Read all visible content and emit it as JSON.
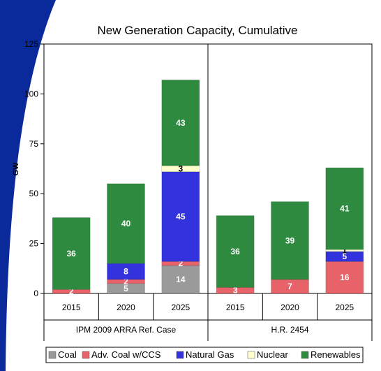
{
  "chart_data": {
    "type": "bar",
    "title": "New Generation Capacity, Cumulative",
    "ylabel": "GW",
    "xlabel": "",
    "ylim": [
      0,
      125
    ],
    "yticks": [
      0,
      25,
      50,
      75,
      100,
      125
    ],
    "groups": [
      {
        "label": "IPM 2009 ARRA Ref. Case",
        "categories": [
          "2015",
          "2020",
          "2025"
        ]
      },
      {
        "label": "H.R. 2454",
        "categories": [
          "2015",
          "2020",
          "2025"
        ]
      }
    ],
    "categories": [
      "2015",
      "2020",
      "2025",
      "2015",
      "2020",
      "2025"
    ],
    "series": [
      {
        "name": "Coal",
        "color": "#9a9a9a",
        "values": [
          0,
          5,
          14,
          0,
          0,
          0
        ],
        "labels": [
          "",
          "5",
          "14",
          "",
          "",
          ""
        ]
      },
      {
        "name": "Adv. Coal w/CCS",
        "color": "#e8626a",
        "values": [
          2,
          2,
          2,
          3,
          7,
          16
        ],
        "labels": [
          "2",
          "2",
          "2",
          "3",
          "7",
          "16"
        ]
      },
      {
        "name": "Natural Gas",
        "color": "#3333dd",
        "values": [
          0,
          8,
          45,
          0,
          0,
          5
        ],
        "labels": [
          "",
          "8",
          "45",
          "",
          "",
          "5"
        ]
      },
      {
        "name": "Nuclear",
        "color": "#ffffcc",
        "values": [
          0,
          0,
          3,
          0,
          0,
          1
        ],
        "labels": [
          "",
          "",
          "3",
          "",
          "",
          "1"
        ]
      },
      {
        "name": "Renewables",
        "color": "#2e8a3e",
        "values": [
          36,
          40,
          43,
          36,
          39,
          41
        ],
        "labels": [
          "36",
          "40",
          "43",
          "36",
          "39",
          "41"
        ]
      }
    ],
    "legend": "bottom",
    "grid": false
  }
}
